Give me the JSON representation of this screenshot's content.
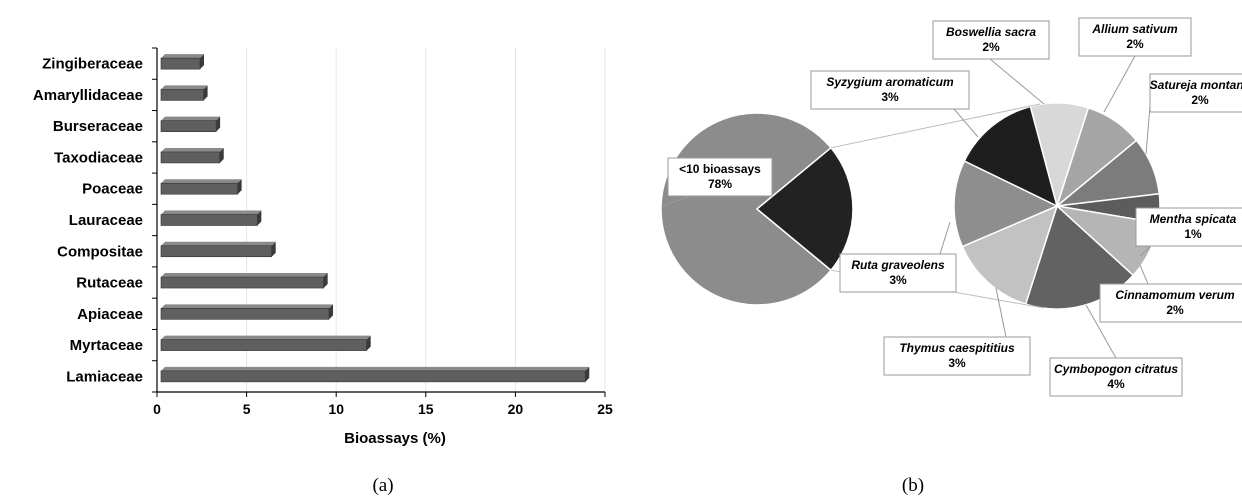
{
  "chart_data": [
    {
      "type": "bar",
      "orientation": "horizontal",
      "panel_label": "(a)",
      "categories": [
        "Zingiberaceae",
        "Amaryllidaceae",
        "Burseraceae",
        "Taxodiaceae",
        "Poaceae",
        "Lauraceae",
        "Compositae",
        "Rutaceae",
        "Apiaceae",
        "Myrtaceae",
        "Lamiaceae"
      ],
      "values": [
        2.4,
        2.6,
        3.3,
        3.5,
        4.5,
        5.6,
        6.4,
        9.3,
        9.6,
        11.7,
        23.9
      ],
      "xlabel": "Bioassays (%)",
      "xlim": [
        0,
        25
      ],
      "xticks": [
        "0",
        "5",
        "10",
        "15",
        "20",
        "25"
      ],
      "grid": "vertical",
      "bar_color": "#5f5f5f"
    },
    {
      "type": "pie",
      "style": "pie-of-pie",
      "panel_label": "(b)",
      "main_slices": [
        {
          "label": "<10 bioassays",
          "value": "78%",
          "pct": 78,
          "color": "#8c8c8c"
        },
        {
          "label": "",
          "value": "",
          "pct": 22,
          "color": "#222222"
        }
      ],
      "secondary_slices": [
        {
          "label": "Boswellia sacra",
          "value": "2%",
          "pct": 2,
          "color": "#d8d8d8"
        },
        {
          "label": "Allium sativum",
          "value": "2%",
          "pct": 2,
          "color": "#a5a5a5"
        },
        {
          "label": "Satureja montana",
          "value": "2%",
          "pct": 2,
          "color": "#7c7c7c"
        },
        {
          "label": "Mentha spicata",
          "value": "1%",
          "pct": 1,
          "color": "#5c5c5c"
        },
        {
          "label": "Cinnamomum verum",
          "value": "2%",
          "pct": 2,
          "color": "#b5b5b5"
        },
        {
          "label": "Cymbopogon citratus",
          "value": "4%",
          "pct": 4,
          "color": "#626262"
        },
        {
          "label": "Thymus caespititius",
          "value": "3%",
          "pct": 3,
          "color": "#c2c2c2"
        },
        {
          "label": "Ruta graveolens",
          "value": "3%",
          "pct": 3,
          "color": "#8e8e8e"
        },
        {
          "label": "Syzygium aromaticum",
          "value": "3%",
          "pct": 3,
          "color": "#1e1e1e"
        }
      ]
    }
  ]
}
